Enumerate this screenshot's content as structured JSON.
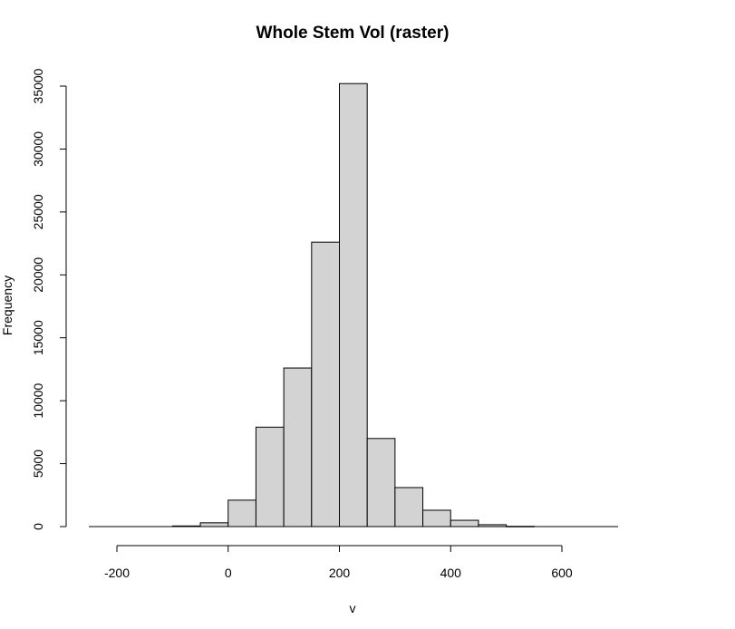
{
  "chart_data": {
    "type": "bar",
    "title": "Whole Stem Vol (raster)",
    "xlabel": "v",
    "ylabel": "Frequency",
    "bar_color": "#d3d3d3",
    "bar_edge_color": "#000000",
    "grid": false,
    "xlim": [
      -250,
      700
    ],
    "ylim": [
      0,
      35000
    ],
    "x_ticks": [
      -200,
      0,
      200,
      400,
      600
    ],
    "y_ticks": [
      0,
      5000,
      10000,
      15000,
      20000,
      25000,
      30000,
      35000
    ],
    "bins": [
      {
        "x0": -100,
        "x1": -50,
        "count": 50
      },
      {
        "x0": -50,
        "x1": 0,
        "count": 300
      },
      {
        "x0": 0,
        "x1": 50,
        "count": 2100
      },
      {
        "x0": 50,
        "x1": 100,
        "count": 7900
      },
      {
        "x0": 100,
        "x1": 150,
        "count": 12600
      },
      {
        "x0": 150,
        "x1": 200,
        "count": 22600
      },
      {
        "x0": 200,
        "x1": 250,
        "count": 35200
      },
      {
        "x0": 250,
        "x1": 300,
        "count": 7000
      },
      {
        "x0": 300,
        "x1": 350,
        "count": 3100
      },
      {
        "x0": 350,
        "x1": 400,
        "count": 1300
      },
      {
        "x0": 400,
        "x1": 450,
        "count": 500
      },
      {
        "x0": 450,
        "x1": 500,
        "count": 150
      },
      {
        "x0": 500,
        "x1": 550,
        "count": 20
      }
    ]
  }
}
